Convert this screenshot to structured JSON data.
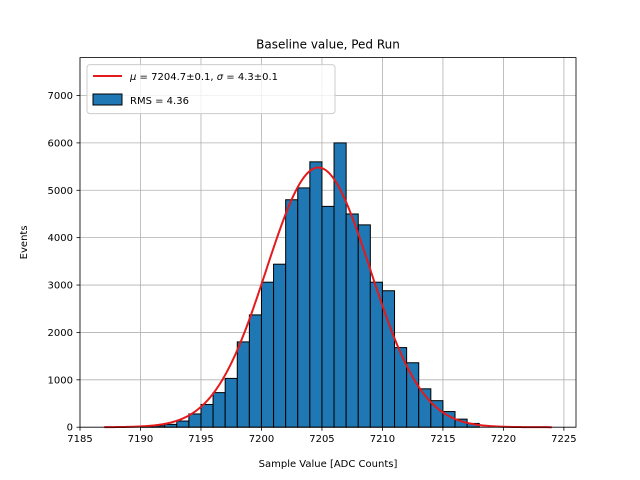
{
  "chart_data": {
    "type": "bar",
    "title": "Baseline value, Ped Run",
    "xlabel": "Sample Value [ADC Counts]",
    "ylabel": "Events",
    "xlim": [
      7185,
      7226
    ],
    "ylim": [
      0,
      7800
    ],
    "xticks": [
      7185,
      7190,
      7195,
      7200,
      7205,
      7210,
      7215,
      7220,
      7225
    ],
    "yticks": [
      0,
      1000,
      2000,
      3000,
      4000,
      5000,
      6000,
      7000
    ],
    "grid": true,
    "legend_position": "top-left",
    "histogram": {
      "bin_edges": [
        7190,
        7191,
        7192,
        7193,
        7194,
        7195,
        7196,
        7197,
        7198,
        7199,
        7200,
        7201,
        7202,
        7203,
        7204,
        7205,
        7206,
        7207,
        7208,
        7209,
        7210,
        7211,
        7212,
        7213,
        7214,
        7215,
        7216,
        7217,
        7218
      ],
      "counts": [
        10,
        30,
        60,
        130,
        280,
        480,
        730,
        1030,
        1800,
        2370,
        3060,
        3440,
        4800,
        5050,
        5600,
        4660,
        6000,
        4500,
        4270,
        3060,
        2880,
        1680,
        1360,
        810,
        560,
        330,
        170,
        80
      ],
      "legend": "RMS = 4.36",
      "color": "#1f77b4",
      "edge_color": "#000000"
    },
    "fit": {
      "type": "gaussian",
      "amplitude": 5480,
      "mu": 7204.7,
      "sigma": 4.3,
      "x_range": [
        7187,
        7224
      ],
      "color": "#e41a1c",
      "legend_mu_value": "7204.7±0.1",
      "legend_sigma_value": "4.3±0.1"
    }
  }
}
